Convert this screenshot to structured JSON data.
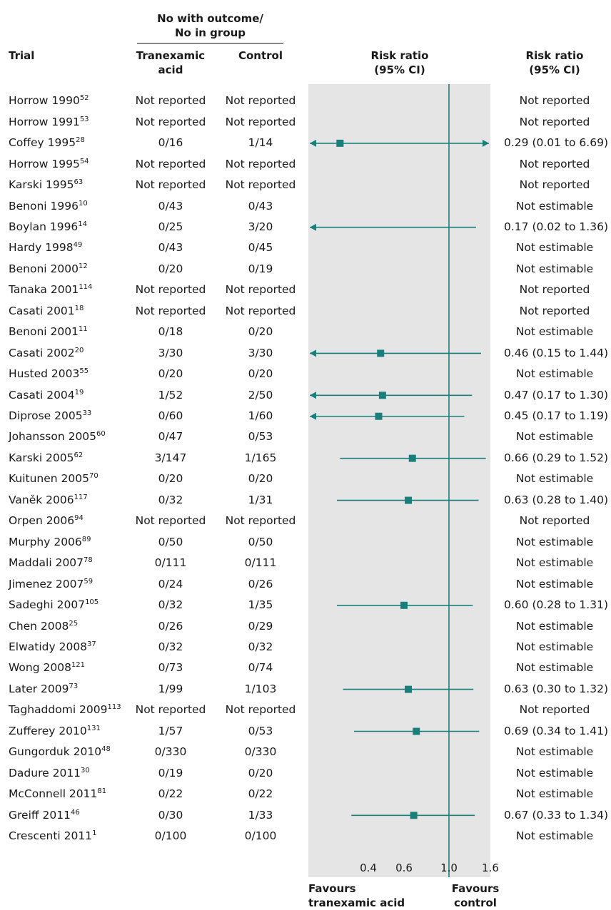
{
  "header": {
    "group_label_line1": "No with outcome/",
    "group_label_line2": "No in group",
    "trial": "Trial",
    "tranexamic_line1": "Tranexamic",
    "tranexamic_line2": "acid",
    "control": "Control",
    "plot_label_line1": "Risk ratio",
    "plot_label_line2": "(95% CI)",
    "rr_label_line1": "Risk ratio",
    "rr_label_line2": "(95% CI)"
  },
  "footer": {
    "favours_left_line1": "Favours",
    "favours_left_line2": "tranexamic acid",
    "favours_right_line1": "Favours",
    "favours_right_line2": "control"
  },
  "colors": {
    "marker": "#1a7f7a",
    "panel": "#e5e5e5"
  },
  "chart_data": {
    "type": "forest",
    "x_scale": "log",
    "xlim": [
      0.25,
      1.6
    ],
    "x_ticks": [
      0.4,
      0.6,
      1.0,
      1.6
    ],
    "x_tick_labels": [
      "0.4",
      "0.6",
      "1.0",
      "1.6"
    ],
    "reference_line": 1.0,
    "rows": [
      {
        "trial": "Horrow 1990",
        "ref": "52",
        "tx": "Not reported",
        "ctrl": "Not reported",
        "rr_text": "Not reported",
        "rr": null,
        "lo": null,
        "hi": null
      },
      {
        "trial": "Horrow 1991",
        "ref": "53",
        "tx": "Not reported",
        "ctrl": "Not reported",
        "rr_text": "Not reported",
        "rr": null,
        "lo": null,
        "hi": null
      },
      {
        "trial": "Coffey 1995",
        "ref": "28",
        "tx": "0/16",
        "ctrl": "1/14",
        "rr_text": "0.29 (0.01 to 6.69)",
        "rr": 0.29,
        "lo": 0.01,
        "hi": 6.69
      },
      {
        "trial": "Horrow 1995",
        "ref": "54",
        "tx": "Not reported",
        "ctrl": "Not reported",
        "rr_text": "Not reported",
        "rr": null,
        "lo": null,
        "hi": null
      },
      {
        "trial": "Karski 1995",
        "ref": "63",
        "tx": "Not reported",
        "ctrl": "Not reported",
        "rr_text": "Not reported",
        "rr": null,
        "lo": null,
        "hi": null
      },
      {
        "trial": "Benoni 1996",
        "ref": "10",
        "tx": "0/43",
        "ctrl": "0/43",
        "rr_text": "Not estimable",
        "rr": null,
        "lo": null,
        "hi": null
      },
      {
        "trial": "Boylan 1996",
        "ref": "14",
        "tx": "0/25",
        "ctrl": "3/20",
        "rr_text": "0.17 (0.02 to 1.36)",
        "rr": 0.17,
        "lo": 0.02,
        "hi": 1.36
      },
      {
        "trial": "Hardy 1998",
        "ref": "49",
        "tx": "0/43",
        "ctrl": "0/45",
        "rr_text": "Not estimable",
        "rr": null,
        "lo": null,
        "hi": null
      },
      {
        "trial": "Benoni 2000",
        "ref": "12",
        "tx": "0/20",
        "ctrl": "0/19",
        "rr_text": "Not estimable",
        "rr": null,
        "lo": null,
        "hi": null
      },
      {
        "trial": "Tanaka 2001",
        "ref": "114",
        "tx": "Not reported",
        "ctrl": "Not reported",
        "rr_text": "Not reported",
        "rr": null,
        "lo": null,
        "hi": null
      },
      {
        "trial": "Casati 2001",
        "ref": "18",
        "tx": "Not reported",
        "ctrl": "Not reported",
        "rr_text": "Not reported",
        "rr": null,
        "lo": null,
        "hi": null
      },
      {
        "trial": "Benoni 2001",
        "ref": "11",
        "tx": "0/18",
        "ctrl": "0/20",
        "rr_text": "Not estimable",
        "rr": null,
        "lo": null,
        "hi": null
      },
      {
        "trial": "Casati 2002",
        "ref": "20",
        "tx": "3/30",
        "ctrl": "3/30",
        "rr_text": "0.46 (0.15 to 1.44)",
        "rr": 0.46,
        "lo": 0.15,
        "hi": 1.44
      },
      {
        "trial": "Husted 2003",
        "ref": "55",
        "tx": "0/20",
        "ctrl": "0/20",
        "rr_text": "Not estimable",
        "rr": null,
        "lo": null,
        "hi": null
      },
      {
        "trial": "Casati 2004",
        "ref": "19",
        "tx": "1/52",
        "ctrl": "2/50",
        "rr_text": "0.47 (0.17 to 1.30)",
        "rr": 0.47,
        "lo": 0.17,
        "hi": 1.3
      },
      {
        "trial": "Diprose 2005",
        "ref": "33",
        "tx": "0/60",
        "ctrl": "1/60",
        "rr_text": "0.45 (0.17 to 1.19)",
        "rr": 0.45,
        "lo": 0.17,
        "hi": 1.19
      },
      {
        "trial": "Johansson 2005",
        "ref": "60",
        "tx": "0/47",
        "ctrl": "0/53",
        "rr_text": "Not estimable",
        "rr": null,
        "lo": null,
        "hi": null
      },
      {
        "trial": "Karski 2005",
        "ref": "62",
        "tx": "3/147",
        "ctrl": "1/165",
        "rr_text": "0.66 (0.29 to 1.52)",
        "rr": 0.66,
        "lo": 0.29,
        "hi": 1.52
      },
      {
        "trial": "Kuitunen 2005",
        "ref": "70",
        "tx": "0/20",
        "ctrl": "0/20",
        "rr_text": "Not estimable",
        "rr": null,
        "lo": null,
        "hi": null
      },
      {
        "trial": "Vaněk 2006",
        "ref": "117",
        "tx": "0/32",
        "ctrl": "1/31",
        "rr_text": "0.63 (0.28 to 1.40)",
        "rr": 0.63,
        "lo": 0.28,
        "hi": 1.4
      },
      {
        "trial": "Orpen 2006",
        "ref": "94",
        "tx": "Not reported",
        "ctrl": "Not reported",
        "rr_text": "Not reported",
        "rr": null,
        "lo": null,
        "hi": null
      },
      {
        "trial": "Murphy 2006",
        "ref": "89",
        "tx": "0/50",
        "ctrl": "0/50",
        "rr_text": "Not estimable",
        "rr": null,
        "lo": null,
        "hi": null
      },
      {
        "trial": "Maddali 2007",
        "ref": "78",
        "tx": "0/111",
        "ctrl": "0/111",
        "rr_text": "Not estimable",
        "rr": null,
        "lo": null,
        "hi": null
      },
      {
        "trial": "Jimenez 2007",
        "ref": "59",
        "tx": "0/24",
        "ctrl": "0/26",
        "rr_text": "Not estimable",
        "rr": null,
        "lo": null,
        "hi": null
      },
      {
        "trial": "Sadeghi 2007",
        "ref": "105",
        "tx": "0/32",
        "ctrl": "1/35",
        "rr_text": "0.60 (0.28 to 1.31)",
        "rr": 0.6,
        "lo": 0.28,
        "hi": 1.31
      },
      {
        "trial": "Chen 2008",
        "ref": "25",
        "tx": "0/26",
        "ctrl": "0/29",
        "rr_text": "Not estimable",
        "rr": null,
        "lo": null,
        "hi": null
      },
      {
        "trial": "Elwatidy 2008",
        "ref": "37",
        "tx": "0/32",
        "ctrl": "0/32",
        "rr_text": "Not estimable",
        "rr": null,
        "lo": null,
        "hi": null
      },
      {
        "trial": "Wong 2008",
        "ref": "121",
        "tx": "0/73",
        "ctrl": "0/74",
        "rr_text": "Not estimable",
        "rr": null,
        "lo": null,
        "hi": null
      },
      {
        "trial": "Later 2009",
        "ref": "73",
        "tx": "1/99",
        "ctrl": "1/103",
        "rr_text": "0.63 (0.30 to 1.32)",
        "rr": 0.63,
        "lo": 0.3,
        "hi": 1.32
      },
      {
        "trial": "Taghaddomi 2009",
        "ref": "113",
        "tx": "Not reported",
        "ctrl": "Not reported",
        "rr_text": "Not reported",
        "rr": null,
        "lo": null,
        "hi": null
      },
      {
        "trial": "Zufferey 2010",
        "ref": "131",
        "tx": "1/57",
        "ctrl": "0/53",
        "rr_text": "0.69 (0.34 to 1.41)",
        "rr": 0.69,
        "lo": 0.34,
        "hi": 1.41
      },
      {
        "trial": "Gungorduk 2010",
        "ref": "48",
        "tx": "0/330",
        "ctrl": "0/330",
        "rr_text": "Not estimable",
        "rr": null,
        "lo": null,
        "hi": null
      },
      {
        "trial": "Dadure 2011",
        "ref": "30",
        "tx": "0/19",
        "ctrl": "0/20",
        "rr_text": "Not estimable",
        "rr": null,
        "lo": null,
        "hi": null
      },
      {
        "trial": "McConnell 2011",
        "ref": "81",
        "tx": "0/22",
        "ctrl": "0/22",
        "rr_text": "Not estimable",
        "rr": null,
        "lo": null,
        "hi": null
      },
      {
        "trial": "Greiff 2011",
        "ref": "46",
        "tx": "0/30",
        "ctrl": "1/33",
        "rr_text": "0.67 (0.33 to 1.34)",
        "rr": 0.67,
        "lo": 0.33,
        "hi": 1.34
      },
      {
        "trial": "Crescenti 2011",
        "ref": "1",
        "tx": "0/100",
        "ctrl": "0/100",
        "rr_text": "Not estimable",
        "rr": null,
        "lo": null,
        "hi": null
      }
    ]
  }
}
